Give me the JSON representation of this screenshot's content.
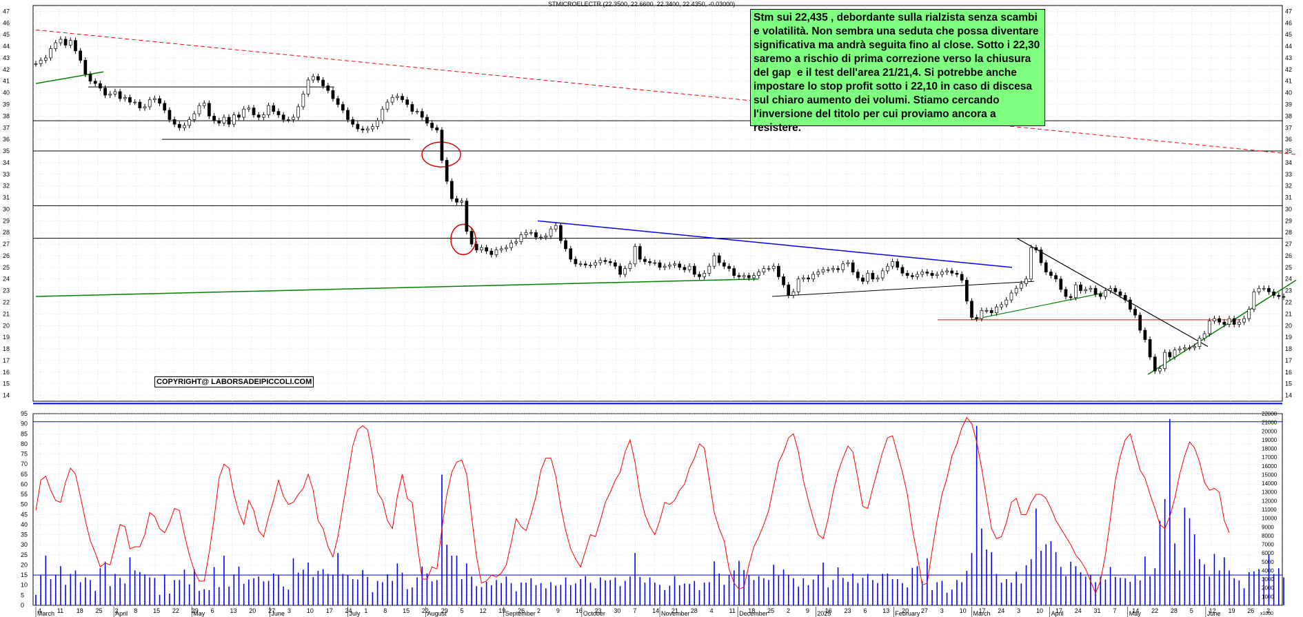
{
  "header": {
    "title": "STMICROELECTR (22.3500, 22.6600, 22.3400, 22.4350, -0.03000)"
  },
  "annotation": {
    "text": "Stm sui 22,435 , debordante sulla rialzista senza scambi e volatilità. Non sembra una seduta che possa diventare significativa ma andrà seguita fino al close. Sotto i 22,30 saremo a rischio di prima correzione verso la chiusura del gap  e il test dell'area 21/21,4. Si potrebbe anche impostare lo stop profit sotto i 22,10 in caso di discesa sul chiaro aumento dei volumi. Stiamo cercando l'inversione del titolo per cui proviamo ancora a resistere."
  },
  "copyright": "COPYRIGHT@ LABORSADEIPICCOLI.COM",
  "colors": {
    "price_candles": "#000000",
    "volume_bars": "#0000ff",
    "oscillator": "#ff0000",
    "support_green": "#008000",
    "downtrend_red": "#ff0000",
    "resistance_blue": "#0000ff",
    "note_bg": "#7fff7f"
  },
  "chart_data": [
    {
      "type": "candlestick",
      "title": "STMICROELECTR (22.3500, 22.6600, 22.3400, 22.4350, -0.03000)",
      "y_ticks": [
        14,
        15,
        16,
        17,
        18,
        19,
        20,
        21,
        22,
        23,
        24,
        25,
        26,
        27,
        28,
        29,
        30,
        31,
        32,
        33,
        34,
        35,
        36,
        37,
        38,
        39,
        40,
        41,
        42,
        43,
        44,
        45,
        46,
        47
      ],
      "ylim": [
        13.5,
        47.5
      ],
      "grid": true,
      "last": {
        "open": 22.35,
        "high": 22.66,
        "low": 22.34,
        "close": 22.435,
        "change": -0.03
      },
      "horizontal_levels": [
        40.5,
        37.6,
        36.0,
        35.0,
        30.3,
        27.5,
        20.5,
        13.3
      ],
      "series": [
        {
          "close": [
            42.5,
            42.8,
            43.0,
            43.8,
            44.3,
            44.6,
            44.1,
            44.5,
            43.6,
            42.8,
            41.6,
            41.0,
            40.8,
            40.4,
            39.8,
            39.9,
            40.1,
            39.5,
            39.6,
            39.2,
            39.2,
            38.7,
            38.8,
            39.4,
            39.5,
            39.1,
            38.5,
            37.7,
            37.3,
            37.0,
            37.2,
            37.7,
            38.2,
            38.9,
            39.1,
            38.0,
            37.6,
            37.4,
            37.9,
            37.3,
            38.1,
            37.9,
            38.6,
            38.7,
            38.1,
            37.9,
            38.1,
            38.9,
            38.4,
            38.1,
            37.7,
            37.7,
            37.9,
            38.8,
            39.9,
            41.1,
            41.4,
            41.1,
            40.6,
            40.2,
            39.5,
            39.0,
            38.5,
            37.7,
            37.3,
            36.9,
            36.8,
            36.9,
            37.1,
            37.6,
            38.6,
            39.2,
            39.6,
            39.7,
            39.4,
            39.0,
            38.4,
            38.4,
            37.9,
            37.4,
            37.0,
            36.8,
            34.2,
            32.4,
            30.9,
            30.6,
            30.7,
            28.1,
            27.0,
            26.5,
            26.7,
            26.4,
            26.1,
            26.5,
            26.6,
            26.7,
            27.1,
            27.2,
            27.8,
            28.0,
            28.0,
            27.6,
            27.6,
            27.7,
            28.3,
            28.6,
            27.3,
            26.6,
            25.7,
            25.3,
            25.3,
            25.2,
            25.2,
            25.4,
            25.6,
            25.5,
            25.4,
            25.1,
            24.4,
            24.9,
            25.3,
            26.8,
            25.7,
            25.5,
            25.4,
            25.4,
            25.0,
            25.1,
            25.2,
            25.3,
            25.0,
            24.8,
            25.1,
            24.4,
            24.2,
            24.5,
            25.1,
            26.0,
            25.4,
            25.1,
            24.9,
            24.3,
            24.2,
            24.3,
            24.1,
            24.3,
            24.6,
            24.9,
            24.9,
            25.1,
            24.2,
            23.5,
            22.6,
            22.9,
            24.0,
            24.1,
            24.0,
            24.4,
            24.6,
            24.8,
            24.8,
            24.9,
            24.8,
            25.3,
            25.4,
            24.6,
            24.1,
            23.8,
            24.5,
            24.0,
            24.1,
            24.7,
            25.1,
            25.5,
            25.0,
            24.5,
            24.3,
            24.2,
            24.4,
            24.6,
            24.5,
            24.3,
            24.4,
            24.6,
            24.7,
            24.5,
            24.4,
            23.9,
            22.1,
            20.7,
            20.6,
            21.3,
            21.3,
            21.1,
            21.6,
            21.8,
            22.2,
            22.8,
            23.2,
            23.6,
            24.0,
            26.7,
            26.5,
            25.4,
            24.6,
            24.3,
            24.0,
            23.1,
            22.5,
            22.4,
            23.5,
            23.0,
            23.1,
            23.2,
            22.7,
            22.5,
            23.0,
            23.2,
            22.9,
            22.6,
            22.2,
            21.4,
            20.9,
            19.6,
            18.8,
            17.3,
            16.1,
            16.3,
            17.7,
            17.3,
            17.9,
            18.0,
            18.1,
            18.1,
            18.2,
            18.9,
            19.3,
            20.4,
            20.6,
            20.3,
            20.1,
            20.6,
            20.1,
            20.3,
            20.6,
            21.4,
            22.9,
            23.2,
            23.2,
            22.9,
            22.6,
            22.5,
            22.435
          ]
        }
      ]
    },
    {
      "type": "bar+line",
      "series": [
        {
          "name": "volume",
          "values": [
            1200,
            3450,
            5700,
            3000,
            3500,
            4500,
            2350,
            3600,
            4000,
            2650,
            3200,
            2900,
            1650,
            4250,
            5000,
            2200,
            3600,
            3150,
            2500,
            5500,
            4000,
            3800,
            3550,
            3200,
            3150,
            1200,
            3550,
            1350,
            2900,
            2900,
            4100,
            2400,
            4150,
            1650,
            1850,
            1750,
            4400,
            2100,
            5700,
            2150,
            3550,
            4450,
            2450,
            2950,
            3100,
            3300,
            2750,
            2800,
            3650,
            3450,
            2150,
            1800,
            5400,
            3750,
            4100,
            4900,
            3250,
            3950,
            4150,
            3600,
            3500,
            6000,
            3600,
            3500,
            3000,
            2950,
            4050,
            3250,
            1500,
            2800,
            2650,
            3550,
            2800,
            4800,
            3750,
            1850,
            2050,
            3200,
            4450,
            3650,
            2750,
            2900,
            15000,
            6950,
            5700,
            5700,
            3000,
            4800,
            3300,
            2200,
            2100,
            2700,
            2300,
            2900,
            2550,
            3300,
            2550,
            1600,
            2600,
            2600,
            3100,
            2300,
            2550,
            1950,
            2650,
            2250,
            2350,
            3200,
            2300,
            2500,
            3000,
            3350,
            2600,
            1950,
            3200,
            2850,
            2900,
            3200,
            2200,
            2800,
            3300,
            6000,
            3250,
            2600,
            3200,
            2600,
            2350,
            1750,
            2250,
            3350,
            2300,
            2500,
            2450,
            2800,
            1750,
            2600,
            2650,
            5050,
            3650,
            2350,
            3450,
            4000,
            5100,
            4050,
            3450,
            2900,
            3350,
            3100,
            2900,
            4650,
            3400,
            4100,
            3500,
            3100,
            2150,
            3100,
            2300,
            2950,
            3500,
            4900,
            2050,
            2900,
            4350,
            3150,
            2700,
            3650,
            2550,
            3150,
            3600,
            2900,
            2550,
            3600,
            3650,
            3000,
            3000,
            2550,
            2050,
            4300,
            4500,
            2800,
            5400,
            1750,
            2650,
            2800,
            1450,
            1800,
            2900,
            2650,
            3950,
            6000,
            20600,
            8800,
            6400,
            6100,
            3600,
            2600,
            3000,
            2600,
            3850,
            2500,
            4600,
            5300,
            11100,
            6250,
            7000,
            7350,
            6100,
            4400,
            3350,
            5000,
            4500,
            3800,
            3300,
            3500,
            2650,
            3300,
            2950,
            4400,
            3250,
            3150,
            3100,
            2700,
            3400,
            2850,
            5600,
            3350,
            4250,
            9700,
            12200,
            21400,
            7100,
            4000,
            11200,
            10000,
            8150,
            5300,
            4700,
            3300,
            5900,
            4000,
            5500,
            4000,
            3100,
            2850,
            1950,
            3800,
            3900,
            4150,
            3200,
            5850,
            3600,
            4250,
            3200
          ]
        },
        {
          "name": "oscillator",
          "values": [
            47,
            62,
            64,
            57,
            52,
            51,
            61,
            68,
            65,
            54,
            42,
            32,
            26,
            19,
            21,
            20,
            30,
            40,
            39,
            28,
            29,
            29,
            35,
            46,
            44,
            38,
            36,
            41,
            48,
            47,
            35,
            25,
            17,
            12,
            12,
            26,
            43,
            63,
            70,
            68,
            55,
            46,
            40,
            52,
            47,
            37,
            34,
            44,
            52,
            62,
            54,
            50,
            51,
            55,
            58,
            65,
            57,
            42,
            38,
            29,
            24,
            34,
            49,
            64,
            79,
            87,
            89,
            87,
            74,
            56,
            52,
            42,
            38,
            54,
            65,
            53,
            51,
            31,
            13,
            13,
            19,
            18,
            38,
            55,
            66,
            71,
            72,
            65,
            44,
            24,
            11,
            12,
            15,
            14,
            16,
            20,
            31,
            43,
            39,
            37,
            45,
            54,
            67,
            73,
            73,
            64,
            49,
            37,
            28,
            23,
            19,
            27,
            35,
            34,
            42,
            51,
            56,
            62,
            66,
            76,
            82,
            71,
            55,
            45,
            39,
            35,
            42,
            51,
            50,
            52,
            57,
            60,
            68,
            73,
            80,
            78,
            62,
            46,
            38,
            32,
            18,
            11,
            8,
            9,
            20,
            29,
            34,
            40,
            47,
            59,
            71,
            76,
            83,
            85,
            76,
            62,
            52,
            43,
            35,
            33,
            43,
            56,
            66,
            73,
            79,
            76,
            63,
            49,
            48,
            58,
            67,
            76,
            83,
            84,
            75,
            66,
            55,
            38,
            25,
            10,
            11,
            27,
            42,
            55,
            63,
            74,
            80,
            88,
            93,
            90,
            81,
            68,
            53,
            38,
            33,
            34,
            41,
            51,
            53,
            45,
            45,
            51,
            55,
            55,
            53,
            48,
            42,
            38,
            34,
            30,
            25,
            22,
            18,
            12,
            6,
            12,
            25,
            43,
            62,
            74,
            82,
            85,
            76,
            67,
            63,
            55,
            48,
            40,
            38,
            44,
            53,
            65,
            74,
            81,
            78,
            71,
            61,
            57,
            58,
            56,
            42,
            36
          ]
        }
      ],
      "left_ticks": [
        0,
        5,
        10,
        15,
        20,
        25,
        30,
        35,
        40,
        45,
        50,
        55,
        60,
        65,
        70,
        75,
        80,
        85,
        90,
        95
      ],
      "right_ticks": [
        1000,
        2000,
        3000,
        4000,
        5000,
        6000,
        7000,
        8000,
        9000,
        10000,
        11000,
        12000,
        13000,
        14000,
        15000,
        16000,
        17000,
        18000,
        19000,
        20000,
        21000,
        22000
      ],
      "right_scale_note": "x1000",
      "levels": [
        15,
        91
      ]
    }
  ],
  "x_axis": {
    "day_ticks": [
      "4",
      "11",
      "18",
      "25",
      "2",
      "8",
      "15",
      "22",
      "29",
      "6",
      "13",
      "20",
      "27",
      "3",
      "10",
      "17",
      "24",
      "1",
      "8",
      "15",
      "22",
      "29",
      "5",
      "12",
      "19",
      "26",
      "2",
      "9",
      "16",
      "23",
      "30",
      "7",
      "14",
      "21",
      "28",
      "4",
      "11",
      "18",
      "25",
      "2",
      "9",
      "16",
      "23",
      "6",
      "13",
      "20",
      "27",
      "3",
      "10",
      "17",
      "24",
      "3",
      "10",
      "17",
      "24",
      "31",
      "7",
      "14",
      "22",
      "28",
      "5",
      "12",
      "19",
      "26",
      "2"
    ],
    "months": [
      "March",
      "April",
      "May",
      "June",
      "July",
      "August",
      "September",
      "October",
      "November",
      "December",
      "2025",
      "February",
      "March",
      "April",
      "May",
      "June"
    ]
  }
}
